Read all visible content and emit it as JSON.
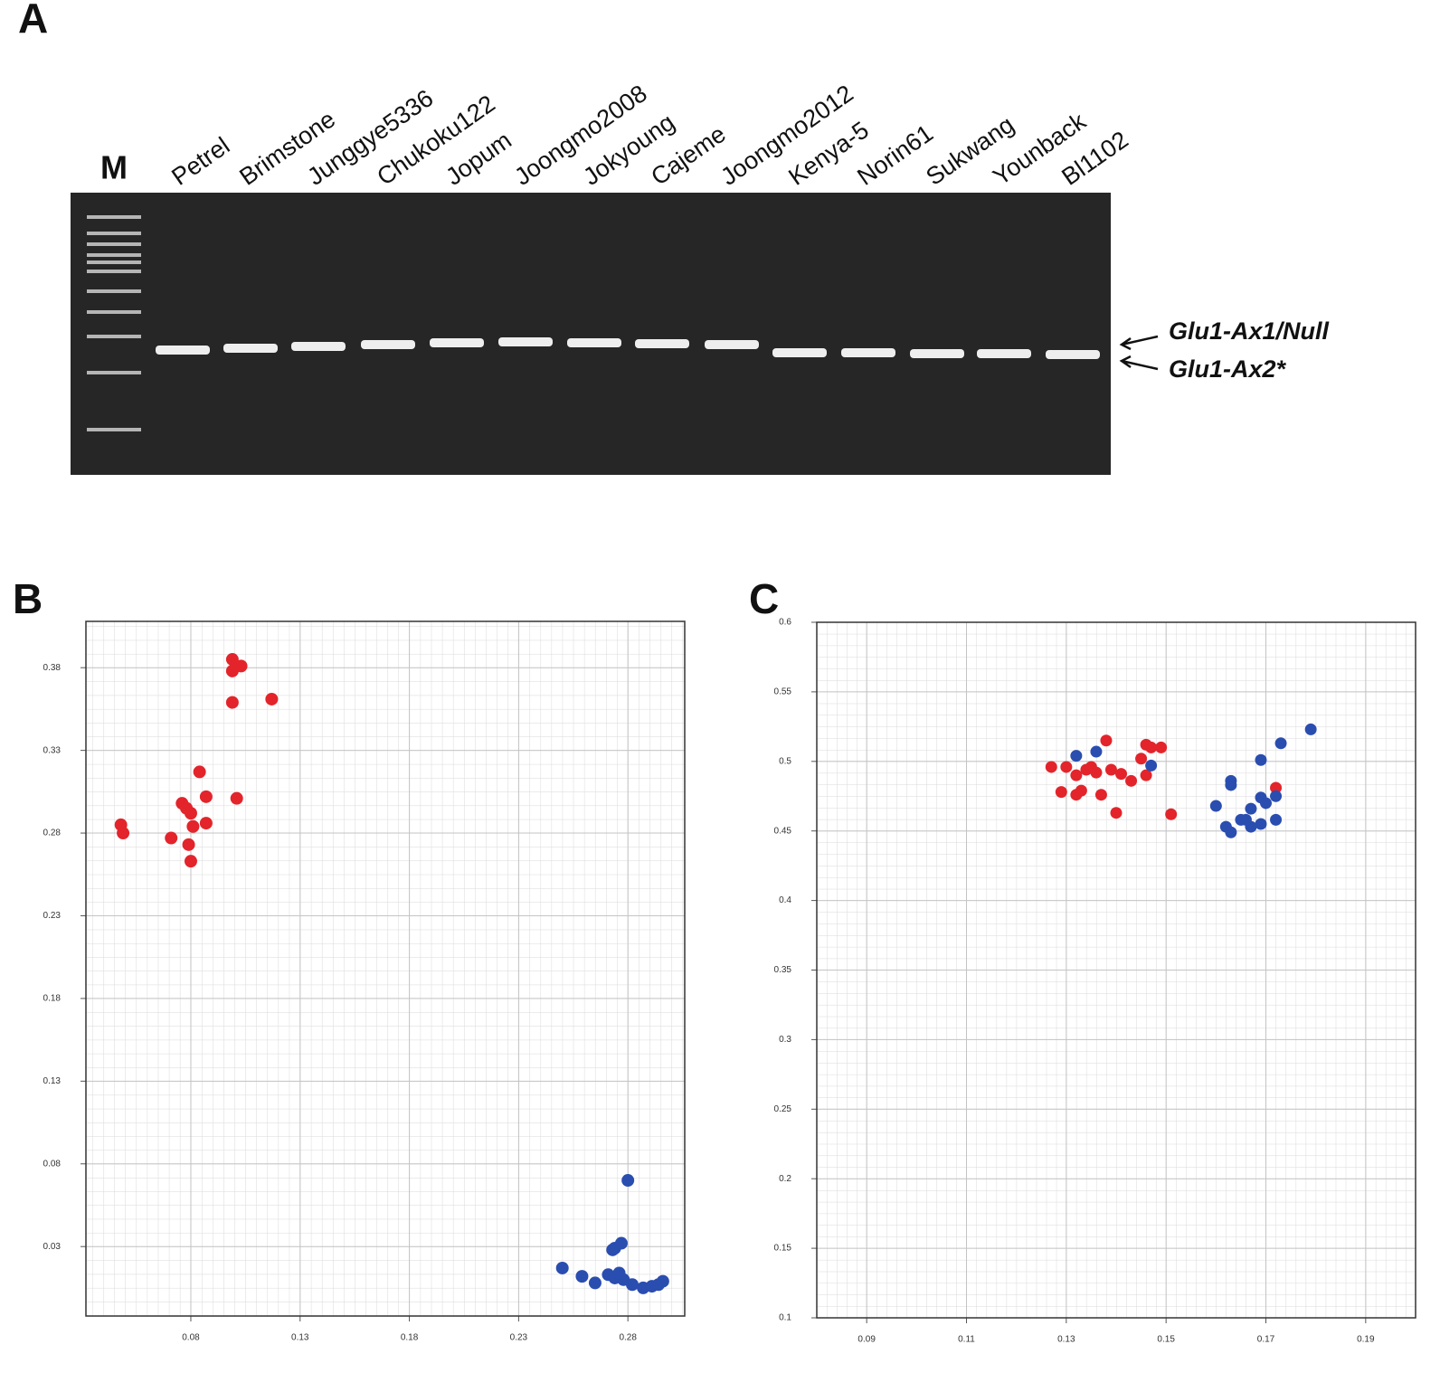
{
  "panels": {
    "a": {
      "label": "A",
      "marker": "M",
      "lanes": [
        "Petrel",
        "Brimstone",
        "Junggye5336",
        "Chukoku122",
        "Jopum",
        "Joongmo2008",
        "Jokyoung",
        "Cajeme",
        "Joongmo2012",
        "Kenya-5",
        "Norin61",
        "Sukwang",
        "Younback",
        "Bl1102"
      ],
      "bands": [
        "Glu1-Ax1/Null",
        "Glu1-Ax2*"
      ]
    },
    "b": {
      "label": "B"
    },
    "c": {
      "label": "C"
    }
  },
  "chart_data": [
    {
      "type": "scatter",
      "xlim": [
        0.032,
        0.306
      ],
      "ylim": [
        -0.012,
        0.408
      ],
      "xticks": [
        0.08,
        0.13,
        0.18,
        0.23,
        0.28
      ],
      "yticks": [
        0.03,
        0.08,
        0.13,
        0.18,
        0.23,
        0.28,
        0.33,
        0.38
      ],
      "grid": true,
      "series": [
        {
          "color": "#e3242b",
          "x": [
            0.048,
            0.049,
            0.099,
            0.099,
            0.103,
            0.099,
            0.117,
            0.084,
            0.087,
            0.101,
            0.076,
            0.08,
            0.081,
            0.087,
            0.071,
            0.079,
            0.08,
            0.078
          ],
          "y": [
            0.285,
            0.28,
            0.385,
            0.378,
            0.381,
            0.359,
            0.361,
            0.317,
            0.302,
            0.301,
            0.298,
            0.292,
            0.284,
            0.286,
            0.277,
            0.273,
            0.263,
            0.295
          ]
        },
        {
          "color": "#2a4db0",
          "x": [
            0.28,
            0.274,
            0.277,
            0.273,
            0.25,
            0.259,
            0.265,
            0.271,
            0.274,
            0.278,
            0.282,
            0.287,
            0.291,
            0.294,
            0.296,
            0.276
          ],
          "y": [
            0.07,
            0.029,
            0.032,
            0.028,
            0.017,
            0.012,
            0.008,
            0.013,
            0.011,
            0.01,
            0.007,
            0.005,
            0.006,
            0.007,
            0.009,
            0.014
          ]
        }
      ]
    },
    {
      "type": "scatter",
      "xlim": [
        0.08,
        0.2
      ],
      "ylim": [
        0.1,
        0.6
      ],
      "xticks": [
        0.09,
        0.11,
        0.13,
        0.15,
        0.17,
        0.19
      ],
      "yticks": [
        0.1,
        0.15,
        0.2,
        0.25,
        0.3,
        0.35,
        0.4,
        0.45,
        0.5,
        0.55,
        0.6
      ],
      "grid": true,
      "series": [
        {
          "color": "#e3242b",
          "x": [
            0.127,
            0.129,
            0.13,
            0.132,
            0.134,
            0.136,
            0.138,
            0.137,
            0.132,
            0.133,
            0.135,
            0.139,
            0.14,
            0.141,
            0.143,
            0.145,
            0.146,
            0.147,
            0.149,
            0.146,
            0.151,
            0.172
          ],
          "y": [
            0.496,
            0.478,
            0.496,
            0.49,
            0.494,
            0.492,
            0.515,
            0.476,
            0.476,
            0.479,
            0.496,
            0.494,
            0.463,
            0.491,
            0.486,
            0.502,
            0.512,
            0.51,
            0.51,
            0.49,
            0.462,
            0.481
          ]
        },
        {
          "color": "#2a4db0",
          "x": [
            0.132,
            0.136,
            0.147,
            0.163,
            0.163,
            0.16,
            0.162,
            0.163,
            0.165,
            0.167,
            0.167,
            0.169,
            0.169,
            0.17,
            0.172,
            0.172,
            0.169,
            0.173,
            0.179,
            0.166
          ],
          "y": [
            0.504,
            0.507,
            0.497,
            0.486,
            0.483,
            0.468,
            0.453,
            0.449,
            0.458,
            0.466,
            0.453,
            0.474,
            0.455,
            0.47,
            0.475,
            0.458,
            0.501,
            0.513,
            0.523,
            0.458
          ]
        }
      ]
    }
  ]
}
